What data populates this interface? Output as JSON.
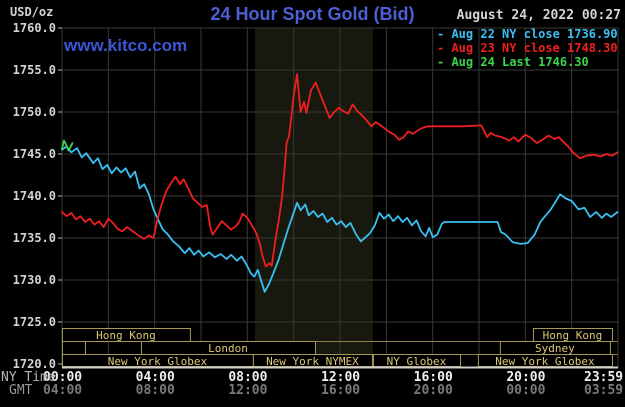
{
  "header": {
    "units_label": "USD/oz",
    "title": "24 Hour Spot Gold (Bid)",
    "datetime": "August 24, 2022 00:27",
    "watermark": "www.kitco.com"
  },
  "legend": {
    "items": [
      {
        "text": "- Aug 22 NY close 1736.90",
        "color": "#3ac0f0"
      },
      {
        "text": "- Aug 23 NY close 1748.30",
        "color": "#ef1f1f"
      },
      {
        "text": "- Aug 24 Last 1746.30",
        "color": "#3dd44d"
      }
    ]
  },
  "y_axis": {
    "ticks": [
      "1760.0",
      "1755.0",
      "1750.0",
      "1745.0",
      "1740.0",
      "1735.0",
      "1730.0",
      "1725.0",
      "1720.0"
    ]
  },
  "x_axis": {
    "ny_row_label": "NY Time",
    "gmt_row_label": "GMT",
    "ticks": [
      {
        "h": 0,
        "ny": "00:00",
        "gmt": "04:00"
      },
      {
        "h": 4,
        "ny": "04:00",
        "gmt": "08:00"
      },
      {
        "h": 8,
        "ny": "08:00",
        "gmt": "12:00"
      },
      {
        "h": 12,
        "ny": "12:00",
        "gmt": "16:00"
      },
      {
        "h": 16,
        "ny": "16:00",
        "gmt": "20:00"
      },
      {
        "h": 20,
        "ny": "20:00",
        "gmt": "00:00"
      },
      {
        "h": 23.983,
        "ny": "23:59",
        "gmt": "03:59"
      }
    ]
  },
  "sessions": {
    "items": [
      {
        "row": 1,
        "start": 0,
        "end": 5.52,
        "label": "Hong Kong"
      },
      {
        "row": 1,
        "start": 20.33,
        "end": 23.74,
        "label": "Hong Kong"
      },
      {
        "row": 2,
        "start": 0,
        "end": 0.99,
        "label": ""
      },
      {
        "row": 2,
        "start": 3.41,
        "end": 10.92,
        "label": "London"
      },
      {
        "row": 2,
        "start": 18.9,
        "end": 23.65,
        "label": "Sydney"
      },
      {
        "row": 3,
        "start": 0,
        "end": 8.24,
        "label": "New York Globex"
      },
      {
        "row": 3,
        "start": 8.24,
        "end": 13.38,
        "label": "New York NYMEX"
      },
      {
        "row": 3,
        "start": 13.42,
        "end": 17.18,
        "label": "NY Globex"
      },
      {
        "row": 3,
        "start": 17.95,
        "end": 23.74,
        "label": "New York Globex"
      }
    ]
  },
  "chart_data": {
    "type": "line",
    "title": "24 Hour Spot Gold (Bid)",
    "xlabel": "NY Time (hours 00:00-23:59)",
    "ylabel": "USD/oz",
    "xlim": [
      0,
      24
    ],
    "ylim": [
      1720,
      1760
    ],
    "y_grid_step": 5,
    "x_grid_step_hours": 2,
    "grid": true,
    "legend_position": "top-right",
    "shaded_region_hours": {
      "start": 8.33,
      "end": 13.42
    },
    "series": [
      {
        "name": "Aug 22 (NY close 1736.90)",
        "color": "#3ac0f0",
        "points": [
          [
            0,
            1745.5
          ],
          [
            0.2,
            1745.9
          ],
          [
            0.4,
            1745.2
          ],
          [
            0.65,
            1745.7
          ],
          [
            0.85,
            1744.6
          ],
          [
            1.05,
            1745.1
          ],
          [
            1.35,
            1743.9
          ],
          [
            1.55,
            1744.5
          ],
          [
            1.75,
            1743.2
          ],
          [
            1.95,
            1743.7
          ],
          [
            2.15,
            1742.7
          ],
          [
            2.35,
            1743.4
          ],
          [
            2.55,
            1742.8
          ],
          [
            2.75,
            1743.3
          ],
          [
            2.95,
            1742.2
          ],
          [
            3.15,
            1742.9
          ],
          [
            3.35,
            1740.9
          ],
          [
            3.55,
            1741.4
          ],
          [
            3.75,
            1740.2
          ],
          [
            3.95,
            1738.4
          ],
          [
            4.15,
            1737.2
          ],
          [
            4.35,
            1736.0
          ],
          [
            4.55,
            1735.5
          ],
          [
            4.8,
            1734.6
          ],
          [
            5.05,
            1734.0
          ],
          [
            5.3,
            1733.2
          ],
          [
            5.5,
            1733.8
          ],
          [
            5.7,
            1733.0
          ],
          [
            5.9,
            1733.5
          ],
          [
            6.1,
            1732.8
          ],
          [
            6.35,
            1733.3
          ],
          [
            6.6,
            1732.7
          ],
          [
            6.85,
            1733.1
          ],
          [
            7.1,
            1732.5
          ],
          [
            7.3,
            1733.0
          ],
          [
            7.55,
            1732.3
          ],
          [
            7.75,
            1732.8
          ],
          [
            7.95,
            1731.9
          ],
          [
            8.15,
            1730.8
          ],
          [
            8.3,
            1730.4
          ],
          [
            8.45,
            1731.2
          ],
          [
            8.6,
            1729.9
          ],
          [
            8.75,
            1728.6
          ],
          [
            8.95,
            1729.6
          ],
          [
            9.15,
            1731.0
          ],
          [
            9.35,
            1732.4
          ],
          [
            9.55,
            1734.2
          ],
          [
            9.75,
            1736.0
          ],
          [
            9.95,
            1737.6
          ],
          [
            10.15,
            1739.2
          ],
          [
            10.3,
            1738.3
          ],
          [
            10.5,
            1739.0
          ],
          [
            10.65,
            1737.7
          ],
          [
            10.85,
            1738.2
          ],
          [
            11.05,
            1737.5
          ],
          [
            11.25,
            1737.9
          ],
          [
            11.45,
            1736.9
          ],
          [
            11.65,
            1737.4
          ],
          [
            11.85,
            1736.6
          ],
          [
            12.05,
            1737.0
          ],
          [
            12.25,
            1736.3
          ],
          [
            12.45,
            1736.8
          ],
          [
            12.7,
            1735.4
          ],
          [
            12.9,
            1734.6
          ],
          [
            13.1,
            1735.1
          ],
          [
            13.3,
            1735.6
          ],
          [
            13.5,
            1736.5
          ],
          [
            13.7,
            1738.0
          ],
          [
            13.9,
            1737.3
          ],
          [
            14.1,
            1737.8
          ],
          [
            14.3,
            1737.0
          ],
          [
            14.5,
            1737.6
          ],
          [
            14.7,
            1736.9
          ],
          [
            14.9,
            1737.4
          ],
          [
            15.1,
            1736.5
          ],
          [
            15.3,
            1737.1
          ],
          [
            15.5,
            1735.8
          ],
          [
            15.7,
            1735.2
          ],
          [
            15.85,
            1736.2
          ],
          [
            16.0,
            1735.1
          ],
          [
            16.2,
            1735.4
          ],
          [
            16.4,
            1736.7
          ],
          [
            16.5,
            1736.9
          ],
          [
            18.8,
            1736.9
          ],
          [
            18.95,
            1735.7
          ],
          [
            19.15,
            1735.4
          ],
          [
            19.45,
            1734.5
          ],
          [
            19.8,
            1734.3
          ],
          [
            20.1,
            1734.4
          ],
          [
            20.4,
            1735.4
          ],
          [
            20.65,
            1736.9
          ],
          [
            20.85,
            1737.6
          ],
          [
            21.1,
            1738.4
          ],
          [
            21.5,
            1740.2
          ],
          [
            21.75,
            1739.7
          ],
          [
            22.0,
            1739.4
          ],
          [
            22.3,
            1738.4
          ],
          [
            22.55,
            1738.6
          ],
          [
            22.8,
            1737.5
          ],
          [
            23.05,
            1738.1
          ],
          [
            23.3,
            1737.4
          ],
          [
            23.5,
            1737.9
          ],
          [
            23.7,
            1737.5
          ],
          [
            23.98,
            1738.1
          ]
        ]
      },
      {
        "name": "Aug 23 (NY close 1748.30)",
        "color": "#ef1f1f",
        "points": [
          [
            0,
            1738.1
          ],
          [
            0.2,
            1737.6
          ],
          [
            0.4,
            1738.0
          ],
          [
            0.6,
            1737.2
          ],
          [
            0.8,
            1737.6
          ],
          [
            1.0,
            1736.9
          ],
          [
            1.2,
            1737.3
          ],
          [
            1.4,
            1736.6
          ],
          [
            1.6,
            1737.0
          ],
          [
            1.8,
            1736.3
          ],
          [
            2.0,
            1737.3
          ],
          [
            2.2,
            1736.8
          ],
          [
            2.4,
            1736.1
          ],
          [
            2.6,
            1735.8
          ],
          [
            2.8,
            1736.3
          ],
          [
            3.0,
            1735.9
          ],
          [
            3.3,
            1735.3
          ],
          [
            3.55,
            1734.9
          ],
          [
            3.75,
            1735.3
          ],
          [
            3.95,
            1735.0
          ],
          [
            4.1,
            1737.0
          ],
          [
            4.3,
            1739.0
          ],
          [
            4.5,
            1740.6
          ],
          [
            4.7,
            1741.5
          ],
          [
            4.9,
            1742.3
          ],
          [
            5.1,
            1741.4
          ],
          [
            5.25,
            1742.0
          ],
          [
            5.45,
            1740.9
          ],
          [
            5.65,
            1739.7
          ],
          [
            5.85,
            1739.2
          ],
          [
            6.05,
            1738.7
          ],
          [
            6.25,
            1738.9
          ],
          [
            6.4,
            1736.3
          ],
          [
            6.5,
            1735.4
          ],
          [
            6.7,
            1736.2
          ],
          [
            6.9,
            1737.0
          ],
          [
            7.1,
            1736.5
          ],
          [
            7.3,
            1736.0
          ],
          [
            7.5,
            1736.4
          ],
          [
            7.65,
            1736.9
          ],
          [
            7.8,
            1737.9
          ],
          [
            8.0,
            1737.4
          ],
          [
            8.2,
            1736.5
          ],
          [
            8.4,
            1735.5
          ],
          [
            8.55,
            1734.2
          ],
          [
            8.65,
            1732.9
          ],
          [
            8.8,
            1731.6
          ],
          [
            8.95,
            1732.0
          ],
          [
            9.05,
            1731.7
          ],
          [
            9.2,
            1734.5
          ],
          [
            9.35,
            1737.0
          ],
          [
            9.5,
            1739.9
          ],
          [
            9.6,
            1743.0
          ],
          [
            9.7,
            1746.4
          ],
          [
            9.8,
            1747.1
          ],
          [
            9.9,
            1749.5
          ],
          [
            10.0,
            1752.0
          ],
          [
            10.15,
            1754.5
          ],
          [
            10.3,
            1750.0
          ],
          [
            10.45,
            1751.2
          ],
          [
            10.55,
            1749.9
          ],
          [
            10.75,
            1752.6
          ],
          [
            10.95,
            1753.5
          ],
          [
            11.15,
            1752.1
          ],
          [
            11.35,
            1750.7
          ],
          [
            11.55,
            1749.3
          ],
          [
            11.75,
            1750.0
          ],
          [
            11.95,
            1750.5
          ],
          [
            12.15,
            1750.1
          ],
          [
            12.35,
            1749.8
          ],
          [
            12.55,
            1750.9
          ],
          [
            12.75,
            1750.1
          ],
          [
            12.95,
            1749.6
          ],
          [
            13.15,
            1749.0
          ],
          [
            13.35,
            1748.3
          ],
          [
            13.55,
            1748.8
          ],
          [
            13.75,
            1748.4
          ],
          [
            13.95,
            1748.0
          ],
          [
            14.15,
            1747.6
          ],
          [
            14.35,
            1747.3
          ],
          [
            14.55,
            1746.7
          ],
          [
            14.75,
            1747.0
          ],
          [
            14.95,
            1747.7
          ],
          [
            15.15,
            1747.4
          ],
          [
            15.35,
            1747.8
          ],
          [
            15.55,
            1748.1
          ],
          [
            15.8,
            1748.3
          ],
          [
            16.3,
            1748.3
          ],
          [
            17.3,
            1748.3
          ],
          [
            18.1,
            1748.4
          ],
          [
            18.35,
            1747.0
          ],
          [
            18.5,
            1747.5
          ],
          [
            18.7,
            1747.2
          ],
          [
            19.0,
            1747.0
          ],
          [
            19.3,
            1746.6
          ],
          [
            19.5,
            1747.0
          ],
          [
            19.7,
            1746.5
          ],
          [
            20.0,
            1747.3
          ],
          [
            20.25,
            1746.9
          ],
          [
            20.5,
            1746.3
          ],
          [
            20.75,
            1746.7
          ],
          [
            21.0,
            1747.2
          ],
          [
            21.25,
            1746.8
          ],
          [
            21.45,
            1747.0
          ],
          [
            21.65,
            1746.4
          ],
          [
            21.85,
            1745.9
          ],
          [
            22.05,
            1745.2
          ],
          [
            22.35,
            1744.5
          ],
          [
            22.65,
            1744.8
          ],
          [
            22.95,
            1744.9
          ],
          [
            23.25,
            1744.7
          ],
          [
            23.5,
            1745.0
          ],
          [
            23.75,
            1744.8
          ],
          [
            23.98,
            1745.2
          ]
        ]
      },
      {
        "name": "Aug 24 (Last 1746.30)",
        "color": "#3dd44d",
        "points": [
          [
            0,
            1745.6
          ],
          [
            0.08,
            1746.6
          ],
          [
            0.18,
            1746.1
          ],
          [
            0.28,
            1745.4
          ],
          [
            0.38,
            1745.9
          ],
          [
            0.45,
            1746.3
          ]
        ]
      }
    ]
  }
}
